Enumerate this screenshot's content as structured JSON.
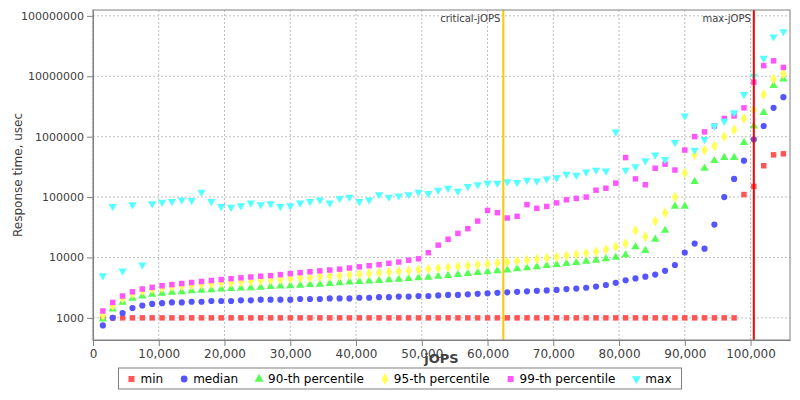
{
  "chart_data": {
    "type": "scatter",
    "x_label": "jOPS",
    "y_label": "Response time, usec",
    "log": "y",
    "grid": true,
    "legend": "bottom",
    "xlim": [
      0,
      106000
    ],
    "ylim": [
      430,
      125000000
    ],
    "xticks": [
      0,
      {
        "value": 10000,
        "label": "10,000"
      },
      {
        "value": 20000,
        "label": "20,000"
      },
      {
        "value": 30000,
        "label": "30,000"
      },
      {
        "value": 40000,
        "label": "40,000"
      },
      {
        "value": 50000,
        "label": "50,000"
      },
      {
        "value": 60000,
        "label": "60,000"
      },
      {
        "value": 70000,
        "label": "70,000"
      },
      {
        "value": 80000,
        "label": "80,000"
      },
      {
        "value": 90000,
        "label": "90,000"
      },
      {
        "value": 100000,
        "label": "100,000"
      }
    ],
    "yticks": [
      1000,
      10000,
      100000,
      1000000,
      10000000,
      100000000
    ],
    "annotations": [
      {
        "label": "critical-jOPS",
        "x": 62400,
        "color": "#ffc800"
      },
      {
        "label": "max-jOPS",
        "x": 100500,
        "color": "#ff0000"
      }
    ],
    "x": [
      1500,
      3000,
      4500,
      6000,
      7500,
      9000,
      10500,
      12000,
      13500,
      15000,
      16500,
      18000,
      19500,
      21000,
      22500,
      24000,
      25500,
      27000,
      28500,
      30000,
      31500,
      33000,
      34500,
      36000,
      37500,
      39000,
      40500,
      42000,
      43500,
      45000,
      46500,
      48000,
      49500,
      51000,
      52500,
      54000,
      55500,
      57000,
      58500,
      60000,
      61500,
      63000,
      64500,
      66000,
      67500,
      69000,
      70500,
      72000,
      73500,
      75000,
      76500,
      78000,
      79500,
      81000,
      82500,
      84000,
      85500,
      87000,
      88500,
      90000,
      91500,
      93000,
      94500,
      96000,
      97500,
      99000,
      100500,
      102000,
      103500,
      105000
    ],
    "series": [
      {
        "name": "min",
        "color": "#ff5555",
        "marker": "square",
        "values": [
          1000,
          1000,
          1000,
          1000,
          1000,
          1000,
          1000,
          1000,
          1000,
          1000,
          1000,
          1000,
          1000,
          1000,
          1000,
          1000,
          1000,
          1000,
          1000,
          1000,
          1000,
          1000,
          1000,
          1000,
          1000,
          1000,
          1000,
          1000,
          1000,
          1000,
          1000,
          1000,
          1000,
          1000,
          1000,
          1000,
          1000,
          1000,
          1000,
          1000,
          1000,
          1000,
          1000,
          1000,
          1000,
          1000,
          1000,
          1000,
          1000,
          1000,
          1000,
          1000,
          1000,
          1000,
          1000,
          1000,
          1000,
          1000,
          1000,
          1000,
          1000,
          1000,
          1000,
          1000,
          1000,
          110000,
          150000,
          330000,
          500000,
          520000
        ]
      },
      {
        "name": "median",
        "color": "#5555ff",
        "marker": "circle",
        "values": [
          750,
          1000,
          1200,
          1450,
          1600,
          1700,
          1750,
          1800,
          1800,
          1850,
          1850,
          1900,
          1900,
          1900,
          1950,
          1950,
          2000,
          2000,
          2000,
          2000,
          2050,
          2050,
          2050,
          2100,
          2100,
          2100,
          2150,
          2150,
          2200,
          2200,
          2250,
          2250,
          2300,
          2300,
          2350,
          2400,
          2400,
          2450,
          2500,
          2550,
          2600,
          2650,
          2700,
          2750,
          2800,
          2850,
          2900,
          3000,
          3050,
          3150,
          3300,
          3500,
          3800,
          4200,
          4500,
          4800,
          5200,
          6000,
          7500,
          12000,
          17000,
          14000,
          35000,
          100000,
          200000,
          400000,
          900000,
          1500000,
          3000000,
          4500000
        ]
      },
      {
        "name": "90-th percentile",
        "color": "#55ff55",
        "marker": "triangle-up",
        "values": [
          950,
          1400,
          1800,
          2100,
          2300,
          2450,
          2550,
          2650,
          2700,
          2800,
          2850,
          2900,
          3000,
          3050,
          3100,
          3150,
          3200,
          3300,
          3350,
          3400,
          3450,
          3550,
          3600,
          3700,
          3800,
          3900,
          4000,
          4050,
          4150,
          4250,
          4350,
          4450,
          4600,
          4700,
          4850,
          5000,
          5200,
          5400,
          5600,
          5800,
          6000,
          6200,
          6500,
          6700,
          7000,
          7300,
          7600,
          7900,
          8200,
          8600,
          9000,
          9500,
          10000,
          11000,
          15000,
          13000,
          20000,
          28000,
          70000,
          70000,
          180000,
          300000,
          400000,
          450000,
          450000,
          800000,
          1500000,
          2500000,
          7000000,
          9000000
        ]
      },
      {
        "name": "95-th percentile",
        "color": "#ffff55",
        "marker": "diamond",
        "values": [
          1100,
          1600,
          2100,
          2500,
          2800,
          3000,
          3150,
          3300,
          3400,
          3500,
          3600,
          3700,
          3800,
          3850,
          3950,
          4050,
          4150,
          4250,
          4350,
          4450,
          4550,
          4650,
          4800,
          4900,
          5000,
          5150,
          5300,
          5450,
          5600,
          5750,
          5900,
          6050,
          6250,
          6450,
          6650,
          6850,
          7100,
          7300,
          7550,
          7800,
          8100,
          8400,
          8700,
          9000,
          9400,
          9800,
          10200,
          10700,
          11200,
          11800,
          12500,
          13500,
          15000,
          17000,
          28000,
          22000,
          40000,
          55000,
          100000,
          250000,
          500000,
          600000,
          700000,
          1000000,
          1300000,
          2000000,
          2800000,
          5000000,
          9000000,
          11000000
        ]
      },
      {
        "name": "99-th percentile",
        "color": "#ff55ff",
        "marker": "square",
        "values": [
          1300,
          1800,
          2300,
          2700,
          3000,
          3200,
          3400,
          3550,
          3700,
          3850,
          4000,
          4150,
          4300,
          4450,
          4600,
          4750,
          4900,
          5000,
          5200,
          5400,
          5600,
          5800,
          6000,
          6200,
          6400,
          6700,
          7000,
          7300,
          7600,
          8000,
          8400,
          9000,
          9500,
          12000,
          16000,
          20000,
          25000,
          30000,
          40000,
          60000,
          55000,
          45000,
          48000,
          75000,
          65000,
          70000,
          80000,
          90000,
          95000,
          100000,
          130000,
          140000,
          170000,
          450000,
          200000,
          160000,
          300000,
          350000,
          280000,
          600000,
          1000000,
          1200000,
          1500000,
          2000000,
          2200000,
          3000000,
          8000000,
          15000000,
          18000000,
          14000000
        ]
      },
      {
        "name": "max",
        "color": "#55ffff",
        "marker": "triangle-down",
        "values": [
          5000,
          70000,
          6000,
          75000,
          7500,
          78000,
          82000,
          85000,
          90000,
          88000,
          120000,
          85000,
          70000,
          68000,
          72000,
          80000,
          75000,
          78000,
          70000,
          72000,
          80000,
          85000,
          90000,
          80000,
          95000,
          100000,
          85000,
          90000,
          110000,
          100000,
          105000,
          110000,
          120000,
          115000,
          130000,
          140000,
          125000,
          150000,
          160000,
          170000,
          170000,
          180000,
          175000,
          190000,
          185000,
          200000,
          210000,
          240000,
          230000,
          260000,
          280000,
          270000,
          1200000,
          280000,
          320000,
          400000,
          500000,
          420000,
          800000,
          2200000,
          600000,
          900000,
          1500000,
          1800000,
          2500000,
          5000000,
          10000000,
          20000000,
          45000000,
          55000000
        ]
      }
    ]
  }
}
